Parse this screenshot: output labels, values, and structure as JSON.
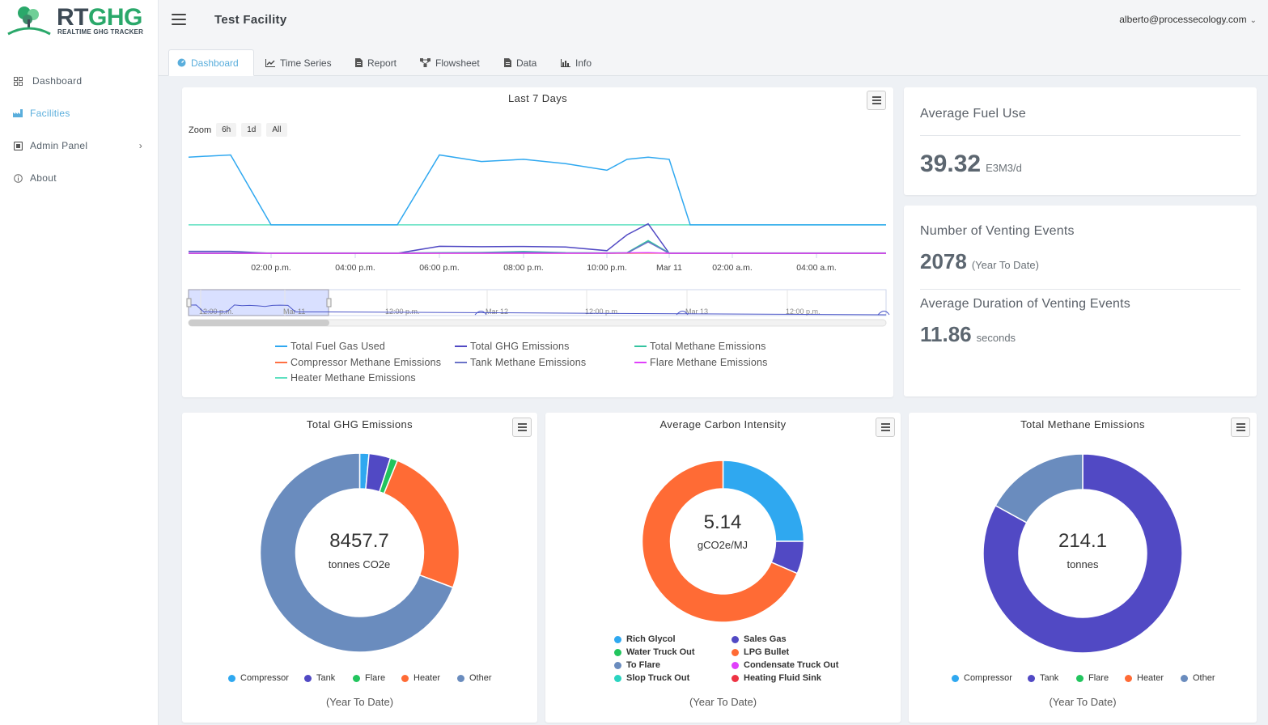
{
  "brand": {
    "name_a": "RT",
    "name_b": "GHG",
    "tagline": "REALTIME GHG TRACKER"
  },
  "sidebar": {
    "items": [
      {
        "label": "Dashboard",
        "icon": "dashboard-icon"
      },
      {
        "label": "Facilities",
        "icon": "factory-icon"
      },
      {
        "label": "Admin Panel",
        "icon": "admin-icon"
      },
      {
        "label": "About",
        "icon": "info-icon"
      }
    ]
  },
  "header": {
    "facility": "Test Facility",
    "user": "alberto@processecology.com"
  },
  "tabs": [
    {
      "label": "Dashboard"
    },
    {
      "label": "Time Series"
    },
    {
      "label": "Report"
    },
    {
      "label": "Flowsheet"
    },
    {
      "label": "Data"
    },
    {
      "label": "Info"
    }
  ],
  "colors": {
    "accent": "#5aaedc",
    "fuel": "#2fa8f0",
    "ghg": "#5149c4",
    "methane": "#34c3a0",
    "compressor_methane": "#ff7043",
    "tank_methane": "#6a73c8",
    "flare_methane": "#e040fb",
    "heater_methane": "#5ee0c0"
  },
  "stats": {
    "fuel": {
      "label": "Average Fuel Use",
      "value": "39.32",
      "unit": "E3M3/d"
    },
    "venting": {
      "label": "Number of Venting Events",
      "value": "2078",
      "unit": "(Year To Date)"
    },
    "duration": {
      "label": "Average Duration of Venting Events",
      "value": "11.86",
      "unit": "seconds"
    }
  },
  "timeseries": {
    "zoom_label": "Zoom",
    "zoom_options": [
      "6h",
      "1d",
      "All"
    ],
    "nav_labels": [
      "12:00 p.m.",
      "Mar 11",
      "12:00 p.m.",
      "Mar 12",
      "12:00 p.m.",
      "Mar 13",
      "12:00 p.m."
    ]
  },
  "chart_data": [
    {
      "type": "line",
      "title": "Last 7 Days",
      "x": [
        "12:00 p.m.",
        "01:00 p.m.",
        "02:00 p.m.",
        "03:00 p.m.",
        "04:00 p.m.",
        "05:00 p.m.",
        "06:00 p.m.",
        "07:00 p.m.",
        "08:00 p.m.",
        "09:00 p.m.",
        "10:00 p.m.",
        "10:30 p.m.",
        "11:00 p.m.",
        "Mar 11",
        "01:00 a.m.",
        "02:00 a.m.",
        "03:00 a.m.",
        "04:00 a.m.",
        "05:00 a.m."
      ],
      "xticks": [
        "02:00 p.m.",
        "04:00 p.m.",
        "06:00 p.m.",
        "08:00 p.m.",
        "10:00 p.m.",
        "Mar 11",
        "02:00 a.m.",
        "04:00 a.m."
      ],
      "series": [
        {
          "name": "Total Fuel Gas Used",
          "color": "#2fa8f0",
          "values": [
            44,
            45,
            13,
            13,
            13,
            13,
            45,
            42,
            43,
            41,
            38,
            43,
            44,
            43,
            13,
            13,
            13,
            13,
            13
          ]
        },
        {
          "name": "Total GHG Emissions",
          "color": "#5149c4",
          "values": [
            0.9,
            0.9,
            0,
            0,
            0,
            0,
            3.2,
            3.0,
            3.1,
            2.9,
            1.2,
            8.5,
            13.5,
            0,
            0,
            0,
            0,
            0,
            0
          ]
        },
        {
          "name": "Total Methane Emissions",
          "color": "#34c3a0",
          "values": [
            0.02,
            0.02,
            0.02,
            0.02,
            0.02,
            0.02,
            0.2,
            0.3,
            0.7,
            0.2,
            0.1,
            0.2,
            5.7,
            0.02,
            0.02,
            0.02,
            0.02,
            0.02,
            0.02
          ]
        },
        {
          "name": "Compressor Methane Emissions",
          "color": "#ff7043",
          "values": [
            0,
            0,
            0,
            0,
            0,
            0,
            0,
            0,
            0,
            0,
            0,
            0,
            0.1,
            0,
            0,
            0,
            0,
            0,
            0
          ]
        },
        {
          "name": "Tank Methane Emissions",
          "color": "#6a73c8",
          "values": [
            0,
            0,
            0,
            0,
            0,
            0,
            0.1,
            0.2,
            0.5,
            0.1,
            0.05,
            0.1,
            5.2,
            0,
            0,
            0,
            0,
            0,
            0
          ]
        },
        {
          "name": "Flare Methane Emissions",
          "color": "#e040fb",
          "values": [
            0,
            0,
            0,
            0,
            0,
            0,
            0,
            0,
            0,
            0,
            0.05,
            0.2,
            0.3,
            0,
            0,
            0,
            0,
            0,
            0
          ]
        },
        {
          "name": "Heater Methane Emissions",
          "color": "#5ee0c0",
          "values": [
            13,
            13,
            13,
            13,
            13,
            13,
            13,
            13,
            13,
            13,
            13,
            13,
            13,
            13,
            13,
            13,
            13,
            13,
            13
          ]
        }
      ]
    },
    {
      "type": "pie",
      "title": "Total GHG Emissions",
      "center_value": "8457.7",
      "center_unit": "tonnes CO2e",
      "footer": "(Year To Date)",
      "labels": [
        "Compressor",
        "Tank",
        "Flare",
        "Heater",
        "Other"
      ],
      "values": [
        1.5,
        3.5,
        1.2,
        24.5,
        69.3
      ],
      "colors": [
        "#2fa8f0",
        "#5149c4",
        "#22c55e",
        "#ff6b35",
        "#6a8cbe"
      ]
    },
    {
      "type": "pie",
      "title": "Average Carbon Intensity",
      "center_value": "5.14",
      "center_unit": "gCO2e/MJ",
      "labels": [
        "Rich Glycol",
        "Sales Gas",
        "Water Truck Out",
        "LPG Bullet",
        "To Flare",
        "Condensate Truck Out",
        "Slop Truck Out",
        "Heating Fluid Sink"
      ],
      "values": [
        25,
        6.5,
        0,
        68.5,
        0,
        0,
        0,
        0
      ],
      "colors": [
        "#2fa8f0",
        "#5149c4",
        "#22c55e",
        "#ff6b35",
        "#6a8cbe",
        "#e040fb",
        "#2ad4c0",
        "#ee3344"
      ]
    },
    {
      "type": "pie",
      "title": "Total Methane Emissions",
      "center_value": "214.1",
      "center_unit": "tonnes",
      "footer": "(Year To Date)",
      "labels": [
        "Compressor",
        "Tank",
        "Flare",
        "Heater",
        "Other"
      ],
      "values": [
        0,
        83,
        0,
        0,
        17
      ],
      "colors": [
        "#2fa8f0",
        "#5149c4",
        "#22c55e",
        "#ff6b35",
        "#6a8cbe"
      ]
    }
  ]
}
